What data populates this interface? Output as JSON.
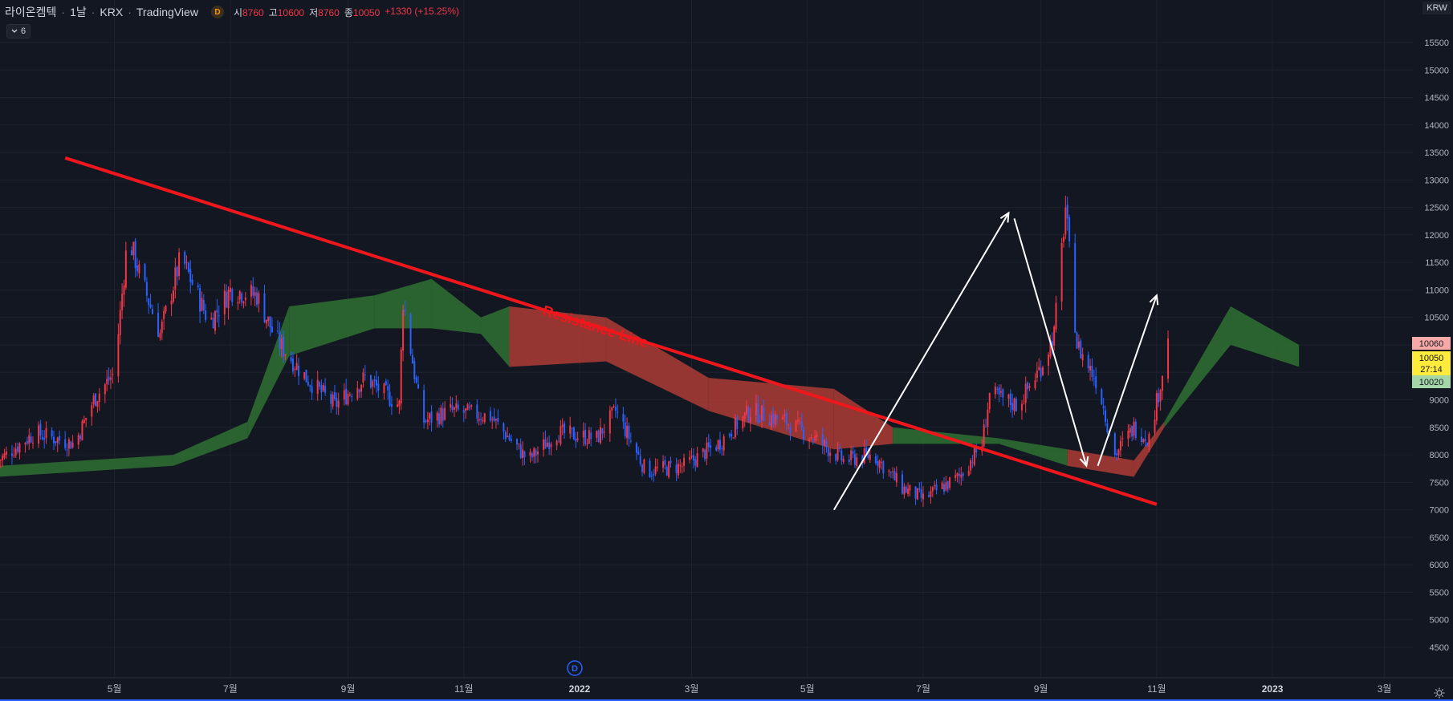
{
  "header": {
    "symbol": "라이온켐텍",
    "interval": "1날",
    "exchange": "KRX",
    "brand": "TradingView",
    "badge": "D",
    "open_label": "시",
    "open": "8760",
    "high_label": "고",
    "high": "10600",
    "low_label": "저",
    "low": "8760",
    "close_label": "종",
    "close": "10050",
    "change": "+1330 (+15.25%)"
  },
  "indicator_toggle": {
    "icon": "chevron-down-icon",
    "count": "6"
  },
  "currency": "KRW",
  "price_labels": [
    {
      "value": "10060",
      "color": "#f7a9a8"
    },
    {
      "value": "10050",
      "color": "#ffeb3b"
    },
    {
      "value": "27:14",
      "color": "#ffeb3b"
    },
    {
      "value": "10020",
      "color": "#a5d6a7"
    }
  ],
  "dividend_marker": "D",
  "colors": {
    "background": "#131722",
    "up_candle": "#f23645",
    "down_candle": "#2962ff",
    "cloud_bull": "#2e6b32",
    "cloud_bear": "#a53a34",
    "resistance": "#f0171c",
    "arrows": "#ffffff"
  },
  "chart_data": {
    "type": "candlestick",
    "title": "라이온켐텍 · 1날 · KRX",
    "x_axis_ticks": [
      "5월",
      "7월",
      "9월",
      "11월",
      "2022",
      "3월",
      "5월",
      "7월",
      "9월",
      "11월",
      "2023",
      "3월"
    ],
    "y_axis_ticks": [
      4500,
      5000,
      5500,
      6000,
      6500,
      7000,
      7500,
      8000,
      8500,
      9000,
      9500,
      10000,
      10500,
      11000,
      11500,
      12000,
      12500,
      13000,
      13500,
      14000,
      14500,
      15000,
      15500
    ],
    "ylim": [
      4300,
      15900
    ],
    "grid": true,
    "annotation": "Resistance Line",
    "price_path": [
      {
        "date": "2021-03-01",
        "close": 7900
      },
      {
        "date": "2021-03-20",
        "close": 8400
      },
      {
        "date": "2021-04-10",
        "close": 8200
      },
      {
        "date": "2021-04-20",
        "close": 9000
      },
      {
        "date": "2021-05-01",
        "close": 9500
      },
      {
        "date": "2021-05-08",
        "close": 12000
      },
      {
        "date": "2021-05-15",
        "close": 11200
      },
      {
        "date": "2021-05-25",
        "close": 10200
      },
      {
        "date": "2021-06-05",
        "close": 11600
      },
      {
        "date": "2021-06-20",
        "close": 10400
      },
      {
        "date": "2021-07-01",
        "close": 11000
      },
      {
        "date": "2021-07-15",
        "close": 10900
      },
      {
        "date": "2021-07-25",
        "close": 10100
      },
      {
        "date": "2021-08-10",
        "close": 9400
      },
      {
        "date": "2021-08-25",
        "close": 8900
      },
      {
        "date": "2021-09-10",
        "close": 9400
      },
      {
        "date": "2021-09-28",
        "close": 8900
      },
      {
        "date": "2021-09-30",
        "close": 10800
      },
      {
        "date": "2021-10-10",
        "close": 8600
      },
      {
        "date": "2021-10-25",
        "close": 8800
      },
      {
        "date": "2021-11-15",
        "close": 8700
      },
      {
        "date": "2021-12-05",
        "close": 7900
      },
      {
        "date": "2021-12-20",
        "close": 8400
      },
      {
        "date": "2022-01-10",
        "close": 8300
      },
      {
        "date": "2022-01-20",
        "close": 8800
      },
      {
        "date": "2022-02-05",
        "close": 7700
      },
      {
        "date": "2022-02-25",
        "close": 7800
      },
      {
        "date": "2022-03-15",
        "close": 8200
      },
      {
        "date": "2022-04-01",
        "close": 8800
      },
      {
        "date": "2022-04-20",
        "close": 8600
      },
      {
        "date": "2022-05-05",
        "close": 8300
      },
      {
        "date": "2022-05-20",
        "close": 7900
      },
      {
        "date": "2022-06-05",
        "close": 8000
      },
      {
        "date": "2022-06-20",
        "close": 7400
      },
      {
        "date": "2022-07-01",
        "close": 7200
      },
      {
        "date": "2022-07-20",
        "close": 7600
      },
      {
        "date": "2022-08-01",
        "close": 8200
      },
      {
        "date": "2022-08-05",
        "close": 9100
      },
      {
        "date": "2022-08-20",
        "close": 8900
      },
      {
        "date": "2022-09-01",
        "close": 9600
      },
      {
        "date": "2022-09-08",
        "close": 10200
      },
      {
        "date": "2022-09-14",
        "close": 12500
      },
      {
        "date": "2022-09-20",
        "close": 10000
      },
      {
        "date": "2022-10-01",
        "close": 9300
      },
      {
        "date": "2022-10-10",
        "close": 8000
      },
      {
        "date": "2022-10-20",
        "close": 8500
      },
      {
        "date": "2022-10-28",
        "close": 8300
      },
      {
        "date": "2022-11-03",
        "close": 9300
      },
      {
        "date": "2022-11-07",
        "close": 10050
      }
    ],
    "ichimoku_cloud": [
      {
        "date": "2021-03-01",
        "top": 7800,
        "bottom": 7600,
        "color": "bull"
      },
      {
        "date": "2021-06-01",
        "top": 8000,
        "bottom": 7800,
        "color": "bull"
      },
      {
        "date": "2021-07-10",
        "top": 8600,
        "bottom": 8300,
        "color": "bull"
      },
      {
        "date": "2021-08-01",
        "top": 10700,
        "bottom": 9800,
        "color": "bull"
      },
      {
        "date": "2021-09-15",
        "top": 10900,
        "bottom": 10300,
        "color": "bull"
      },
      {
        "date": "2021-10-15",
        "top": 11200,
        "bottom": 10300,
        "color": "bull"
      },
      {
        "date": "2021-11-10",
        "top": 10500,
        "bottom": 10200,
        "color": "bull"
      },
      {
        "date": "2021-11-25",
        "top": 10700,
        "bottom": 9600,
        "color": "bear"
      },
      {
        "date": "2022-01-15",
        "top": 10500,
        "bottom": 9700,
        "color": "bear"
      },
      {
        "date": "2022-03-10",
        "top": 9400,
        "bottom": 8800,
        "color": "bear"
      },
      {
        "date": "2022-05-15",
        "top": 9200,
        "bottom": 8100,
        "color": "bear"
      },
      {
        "date": "2022-06-15",
        "top": 8500,
        "bottom": 8200,
        "color": "bull"
      },
      {
        "date": "2022-08-10",
        "top": 8300,
        "bottom": 8200,
        "color": "bull"
      },
      {
        "date": "2022-09-15",
        "top": 8100,
        "bottom": 7800,
        "color": "bear"
      },
      {
        "date": "2022-10-20",
        "top": 7900,
        "bottom": 7600,
        "color": "bear"
      },
      {
        "date": "2022-11-05",
        "top": 8600,
        "bottom": 8500,
        "color": "bull"
      },
      {
        "date": "2022-12-10",
        "top": 10700,
        "bottom": 10000,
        "color": "bull"
      },
      {
        "date": "2023-01-15",
        "top": 10000,
        "bottom": 9600,
        "color": "bear"
      }
    ],
    "resistance_line": [
      {
        "date": "2021-04-05",
        "price": 13400
      },
      {
        "date": "2022-11-01",
        "price": 7100
      }
    ],
    "projection_arrows": [
      [
        {
          "date": "2022-05-15",
          "price": 7000
        },
        {
          "date": "2022-08-15",
          "price": 12400
        }
      ],
      [
        {
          "date": "2022-08-18",
          "price": 12300
        },
        {
          "date": "2022-09-25",
          "price": 7800
        }
      ],
      [
        {
          "date": "2022-10-01",
          "price": 7800
        },
        {
          "date": "2022-11-01",
          "price": 10900
        }
      ]
    ]
  }
}
